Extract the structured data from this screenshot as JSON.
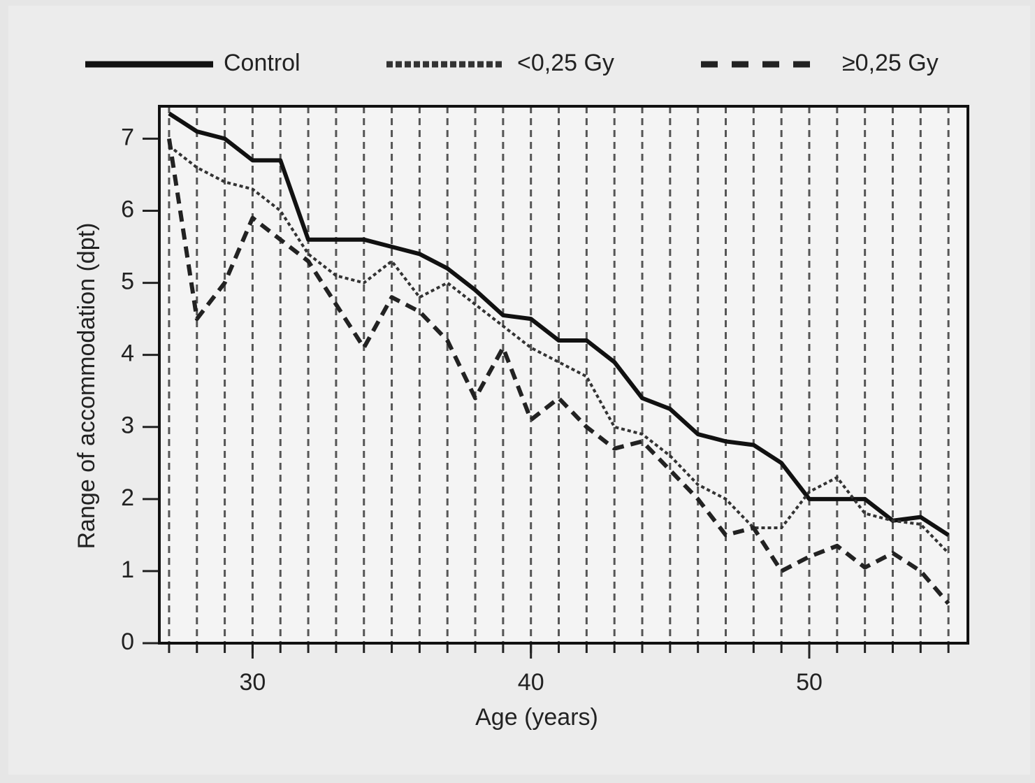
{
  "chart_data": {
    "type": "line",
    "xlabel": "Age (years)",
    "ylabel": "Range of accommodation (dpt)",
    "x": [
      27,
      28,
      29,
      30,
      31,
      32,
      33,
      34,
      35,
      36,
      37,
      38,
      39,
      40,
      41,
      42,
      43,
      44,
      45,
      46,
      47,
      48,
      49,
      50,
      51,
      52,
      53,
      54,
      55
    ],
    "series": [
      {
        "name": "Control",
        "color": "#111111",
        "dash": "solid",
        "values": [
          7.35,
          7.1,
          7.0,
          6.7,
          6.7,
          5.6,
          5.6,
          5.6,
          5.5,
          5.4,
          5.2,
          4.9,
          4.55,
          4.5,
          4.2,
          4.2,
          3.9,
          3.4,
          3.25,
          2.9,
          2.8,
          2.75,
          2.5,
          2.0,
          2.0,
          2.0,
          1.7,
          1.75,
          1.5
        ]
      },
      {
        "name": "<0,25 Gy",
        "color": "#333333",
        "dash": "dotted",
        "values": [
          6.9,
          6.6,
          6.4,
          6.3,
          6.0,
          5.4,
          5.1,
          5.0,
          5.3,
          4.8,
          5.0,
          4.7,
          4.4,
          4.1,
          3.9,
          3.7,
          3.0,
          2.9,
          2.6,
          2.2,
          2.0,
          1.6,
          1.6,
          2.1,
          2.3,
          1.8,
          1.7,
          1.65,
          1.25
        ]
      },
      {
        "name": "≥0,25 Gy",
        "color": "#222222",
        "dash": "dashed",
        "values": [
          7.0,
          4.5,
          5.0,
          5.9,
          5.6,
          5.3,
          4.7,
          4.1,
          4.8,
          4.6,
          4.2,
          3.4,
          4.1,
          3.1,
          3.4,
          3.0,
          2.7,
          2.8,
          2.4,
          2.0,
          1.5,
          1.6,
          1.0,
          1.2,
          1.35,
          1.05,
          1.25,
          1.0,
          0.55
        ]
      }
    ],
    "xlim": [
      26.65,
      55.7
    ],
    "xticks": [
      30,
      40,
      50
    ],
    "ylim": [
      0,
      7.45
    ],
    "yticks": [
      0,
      1,
      2,
      3,
      4,
      5,
      6,
      7
    ],
    "grid": true,
    "legend": "top"
  }
}
